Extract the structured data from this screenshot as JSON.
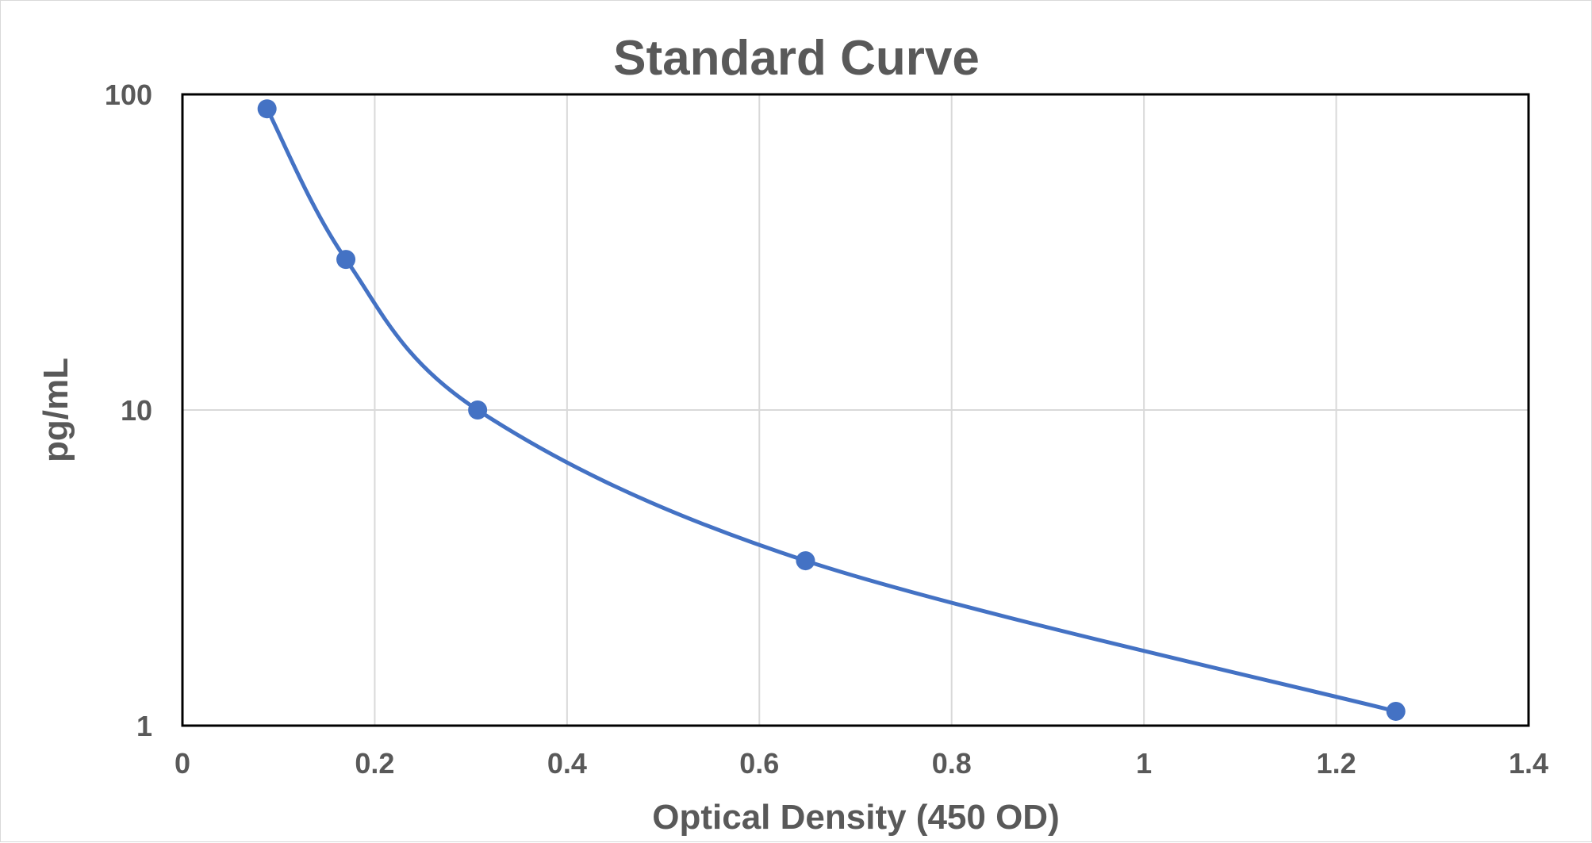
{
  "chart_data": {
    "type": "scatter",
    "title": "Standard Curve",
    "xlabel": "Optical Density (450 OD)",
    "ylabel": "pg/mL",
    "xlim": [
      0,
      1.4
    ],
    "ylim": [
      1,
      100
    ],
    "yscale": "log",
    "grid": true,
    "smooth_line": true,
    "x_ticks": [
      "0",
      "0.2",
      "0.4",
      "0.6",
      "0.8",
      "1",
      "1.2",
      "1.4"
    ],
    "y_ticks": [
      "1",
      "10",
      "100"
    ],
    "color": "#4472c4",
    "series": [
      {
        "x": [
          0.088,
          0.17,
          0.307,
          0.648,
          1.262
        ],
        "y": [
          90,
          30,
          10,
          3.33,
          1.11
        ]
      }
    ]
  }
}
